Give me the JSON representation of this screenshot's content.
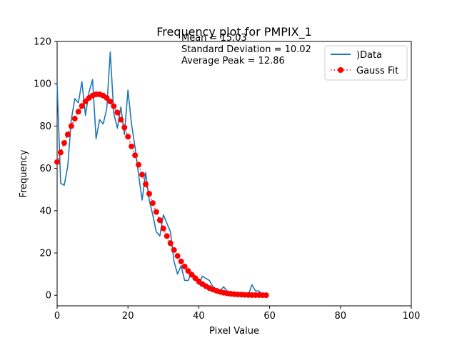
{
  "chart_data": {
    "type": "line",
    "title": "Frequency plot for PMPIX_1",
    "xlabel": "Pixel Value",
    "ylabel": "Frequency",
    "xlim": [
      0,
      100
    ],
    "ylim": [
      -5,
      120
    ],
    "xticks": [
      0,
      20,
      40,
      60,
      80,
      100
    ],
    "yticks": [
      0,
      20,
      40,
      60,
      80,
      100,
      120
    ],
    "grid": false,
    "legend_position": "top-right",
    "annotations": [
      "Mean = 15.03",
      "Standard Deviation = 10.02",
      "Average Peak = 12.86"
    ],
    "series": [
      {
        "name": ")Data",
        "style": "line",
        "color": "#1f77b4",
        "x": [
          0,
          1,
          2,
          3,
          4,
          5,
          6,
          7,
          8,
          9,
          10,
          11,
          12,
          13,
          14,
          15,
          16,
          17,
          18,
          19,
          20,
          21,
          22,
          23,
          24,
          25,
          26,
          27,
          28,
          29,
          30,
          31,
          32,
          33,
          34,
          35,
          36,
          37,
          38,
          39,
          40,
          41,
          42,
          43,
          44,
          45,
          46,
          47,
          48,
          49,
          50,
          51,
          52,
          53,
          54,
          55,
          56,
          57,
          58,
          59
        ],
        "y": [
          100,
          53,
          52,
          61,
          83,
          93,
          91,
          101,
          85,
          96,
          102,
          74,
          83,
          81,
          88,
          115,
          86,
          79,
          89,
          76,
          97,
          81,
          70,
          57,
          45,
          58,
          45,
          38,
          30,
          28,
          38,
          34,
          30,
          16,
          10,
          14,
          7,
          7,
          11,
          9,
          5,
          9,
          8,
          7,
          4,
          3,
          2,
          4,
          2,
          1,
          1,
          0,
          0,
          1,
          0,
          5,
          2,
          2,
          0,
          0
        ]
      },
      {
        "name": "Gauss Fit",
        "style": "dotted-markers",
        "color": "#ff0000",
        "x": [
          0,
          1,
          2,
          3,
          4,
          5,
          6,
          7,
          8,
          9,
          10,
          11,
          12,
          13,
          14,
          15,
          16,
          17,
          18,
          19,
          20,
          21,
          22,
          23,
          24,
          25,
          26,
          27,
          28,
          29,
          30,
          31,
          32,
          33,
          34,
          35,
          36,
          37,
          38,
          39,
          40,
          41,
          42,
          43,
          44,
          45,
          46,
          47,
          48,
          49,
          50,
          51,
          52,
          53,
          54,
          55,
          56,
          57,
          58,
          59
        ],
        "y": [
          63,
          67.5,
          72,
          76,
          80,
          83.5,
          86.8,
          89.5,
          91.7,
          93.3,
          94.4,
          95,
          95,
          94.4,
          93.3,
          91.6,
          89.4,
          86.4,
          83,
          79.3,
          75,
          70.4,
          66.2,
          61.7,
          57,
          52.5,
          48,
          43.6,
          39.4,
          35.5,
          31.6,
          28,
          24.6,
          21.4,
          18.6,
          16,
          13.6,
          11.5,
          9.7,
          8.1,
          6.6,
          5.3,
          4.3,
          3.4,
          2.7,
          2.1,
          1.6,
          1.2,
          0.9,
          0.7,
          0.5,
          0.4,
          0.3,
          0.2,
          0.15,
          0.1,
          0.08,
          0.06,
          0.04,
          0.03
        ]
      }
    ]
  }
}
